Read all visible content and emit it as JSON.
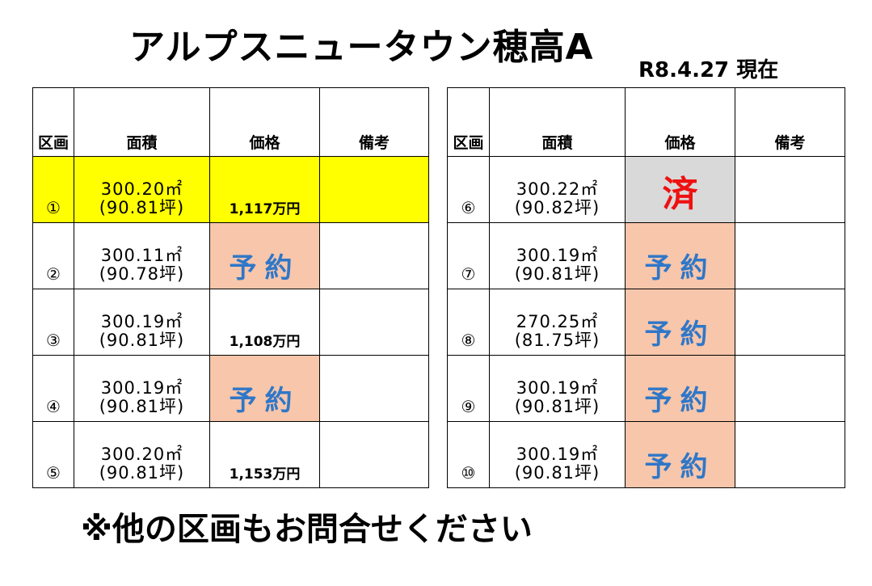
{
  "title": "アルプスニュータウン穂高A",
  "as_of": "R8.4.27 現在",
  "headers": {
    "lot": "区画",
    "area": "面積",
    "price": "価格",
    "notes": "備考"
  },
  "left_rows": [
    {
      "lot": "①",
      "sqm": "300.20㎡",
      "tsubo": "(90.81坪)",
      "price": "1,117万円",
      "status": "",
      "notes": ""
    },
    {
      "lot": "②",
      "sqm": "300.11㎡",
      "tsubo": "(90.78坪)",
      "price": "",
      "status": "予約",
      "notes": ""
    },
    {
      "lot": "③",
      "sqm": "300.19㎡",
      "tsubo": "(90.81坪)",
      "price": "1,108万円",
      "status": "",
      "notes": ""
    },
    {
      "lot": "④",
      "sqm": "300.19㎡",
      "tsubo": "(90.81坪)",
      "price": "",
      "status": "予約",
      "notes": ""
    },
    {
      "lot": "⑤",
      "sqm": "300.20㎡",
      "tsubo": "(90.81坪)",
      "price": "1,153万円",
      "status": "",
      "notes": ""
    }
  ],
  "right_rows": [
    {
      "lot": "⑥",
      "sqm": "300.22㎡",
      "tsubo": "(90.82坪)",
      "price": "",
      "status": "済",
      "notes": ""
    },
    {
      "lot": "⑦",
      "sqm": "300.19㎡",
      "tsubo": "(90.81坪)",
      "price": "",
      "status": "予約",
      "notes": ""
    },
    {
      "lot": "⑧",
      "sqm": "270.25㎡",
      "tsubo": "(81.75坪)",
      "price": "",
      "status": "予約",
      "notes": ""
    },
    {
      "lot": "⑨",
      "sqm": "300.19㎡",
      "tsubo": "(90.81坪)",
      "price": "",
      "status": "予約",
      "notes": ""
    },
    {
      "lot": "⑩",
      "sqm": "300.19㎡",
      "tsubo": "(90.81坪)",
      "price": "",
      "status": "予約",
      "notes": ""
    }
  ],
  "footer": "※他の区画もお問合せください",
  "colors": {
    "reserved_bg": "#f7c6ab",
    "reserved_text": "#2f77c8",
    "sold_bg": "#d9d9d9",
    "sold_text": "#ee1111",
    "highlight": "#ffff00"
  }
}
